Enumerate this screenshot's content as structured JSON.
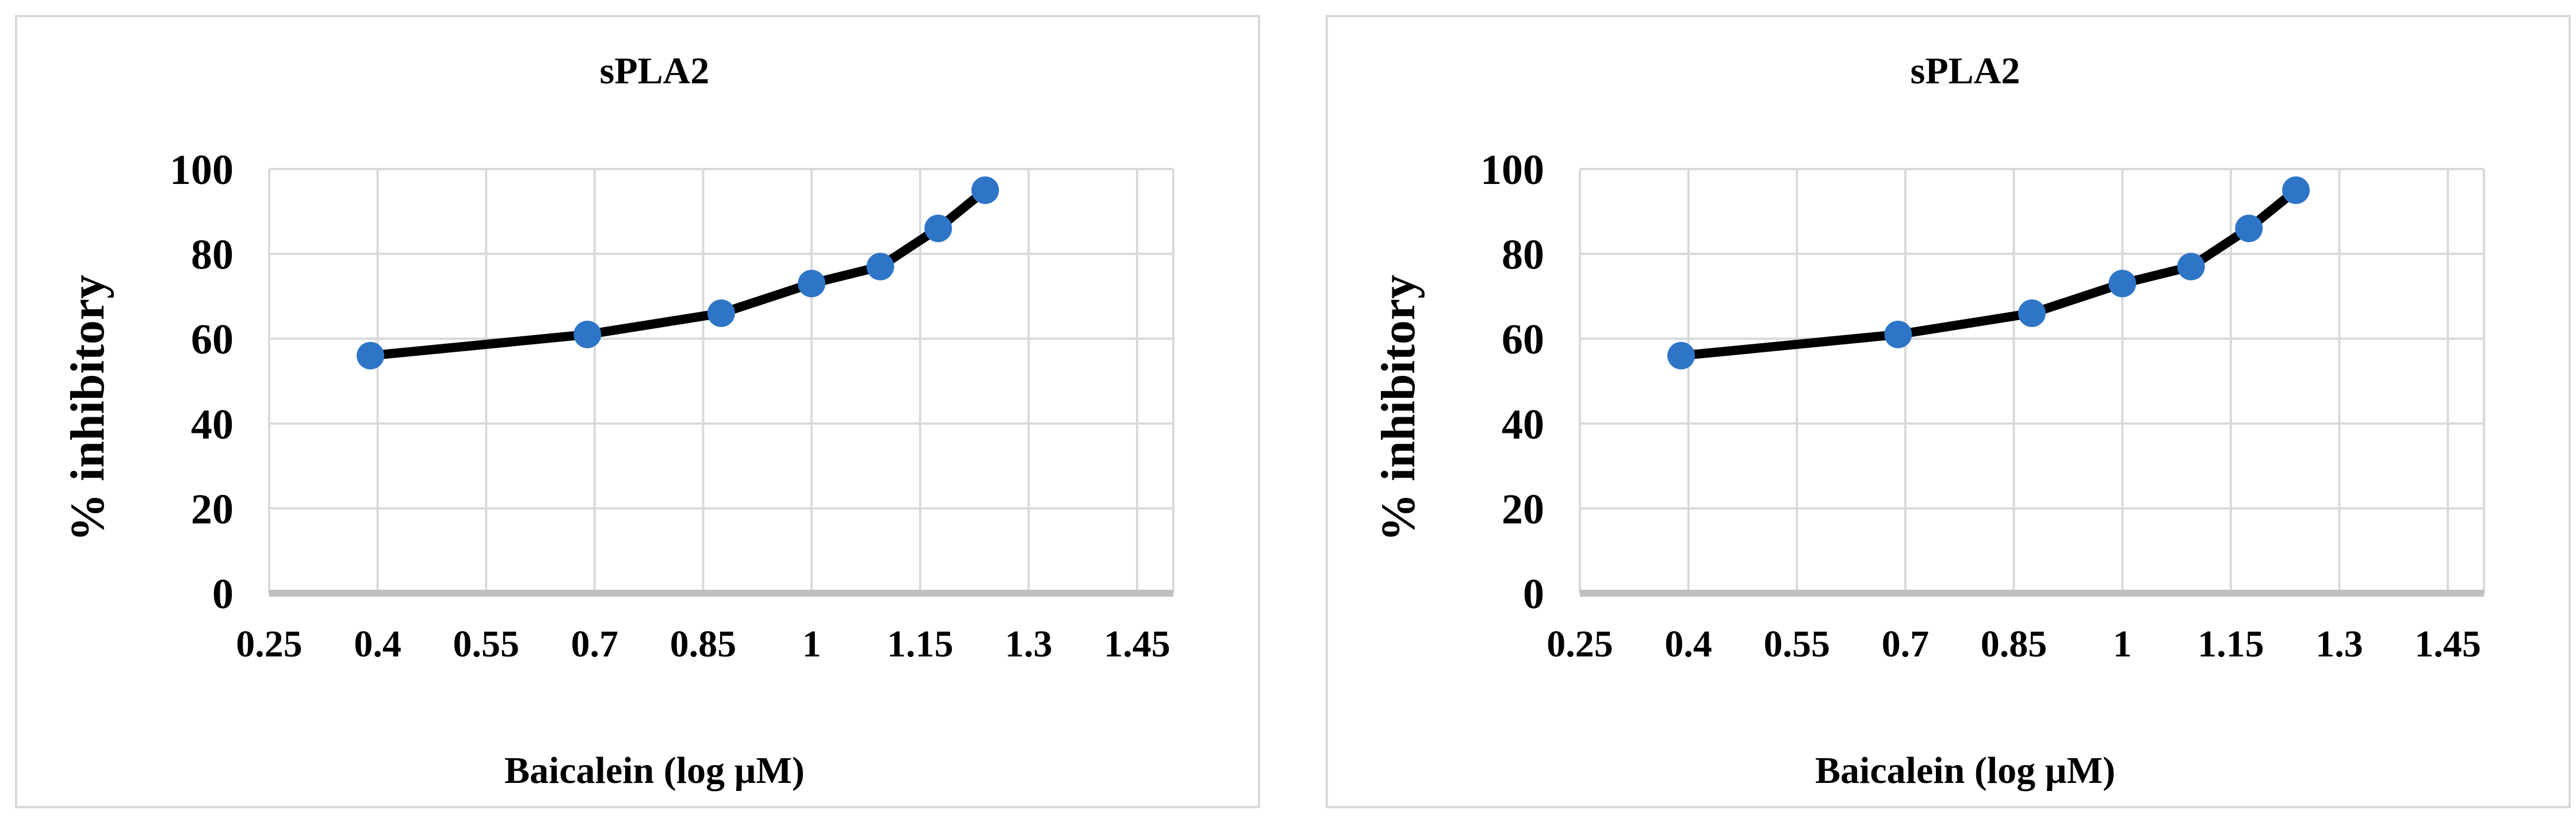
{
  "chart_data": [
    {
      "type": "line",
      "title": "sPLA2",
      "xlabel": "Baicalein (log µM)",
      "ylabel": "% inhibitory",
      "x_ticks": [
        "0.25",
        "0.4",
        "0.55",
        "0.7",
        "0.85",
        "1",
        "1.15",
        "1.3",
        "1.45"
      ],
      "y_ticks": [
        "0",
        "20",
        "40",
        "60",
        "80",
        "100"
      ],
      "xlim": [
        0.25,
        1.5
      ],
      "ylim": [
        0,
        100
      ],
      "grid": true,
      "legend": "none",
      "line_color": "#000000",
      "marker_color": "#2e75c7",
      "series": [
        {
          "x": [
            0.39,
            0.69,
            0.875,
            1.0,
            1.095,
            1.175,
            1.24
          ],
          "y": [
            56,
            61,
            66,
            73,
            77,
            86,
            95
          ]
        }
      ]
    },
    {
      "type": "line",
      "title": "sPLA2",
      "xlabel": "Baicalein (log µM)",
      "ylabel": "% inhibitory",
      "x_ticks": [
        "0.25",
        "0.4",
        "0.55",
        "0.7",
        "0.85",
        "1",
        "1.15",
        "1.3",
        "1.45"
      ],
      "y_ticks": [
        "0",
        "20",
        "40",
        "60",
        "80",
        "100"
      ],
      "xlim": [
        0.25,
        1.5
      ],
      "ylim": [
        0,
        100
      ],
      "grid": true,
      "legend": "none",
      "line_color": "#000000",
      "marker_color": "#2e75c7",
      "series": [
        {
          "x": [
            0.39,
            0.69,
            0.875,
            1.0,
            1.095,
            1.175,
            1.24
          ],
          "y": [
            56,
            61,
            66,
            73,
            77,
            86,
            95
          ]
        }
      ]
    }
  ]
}
